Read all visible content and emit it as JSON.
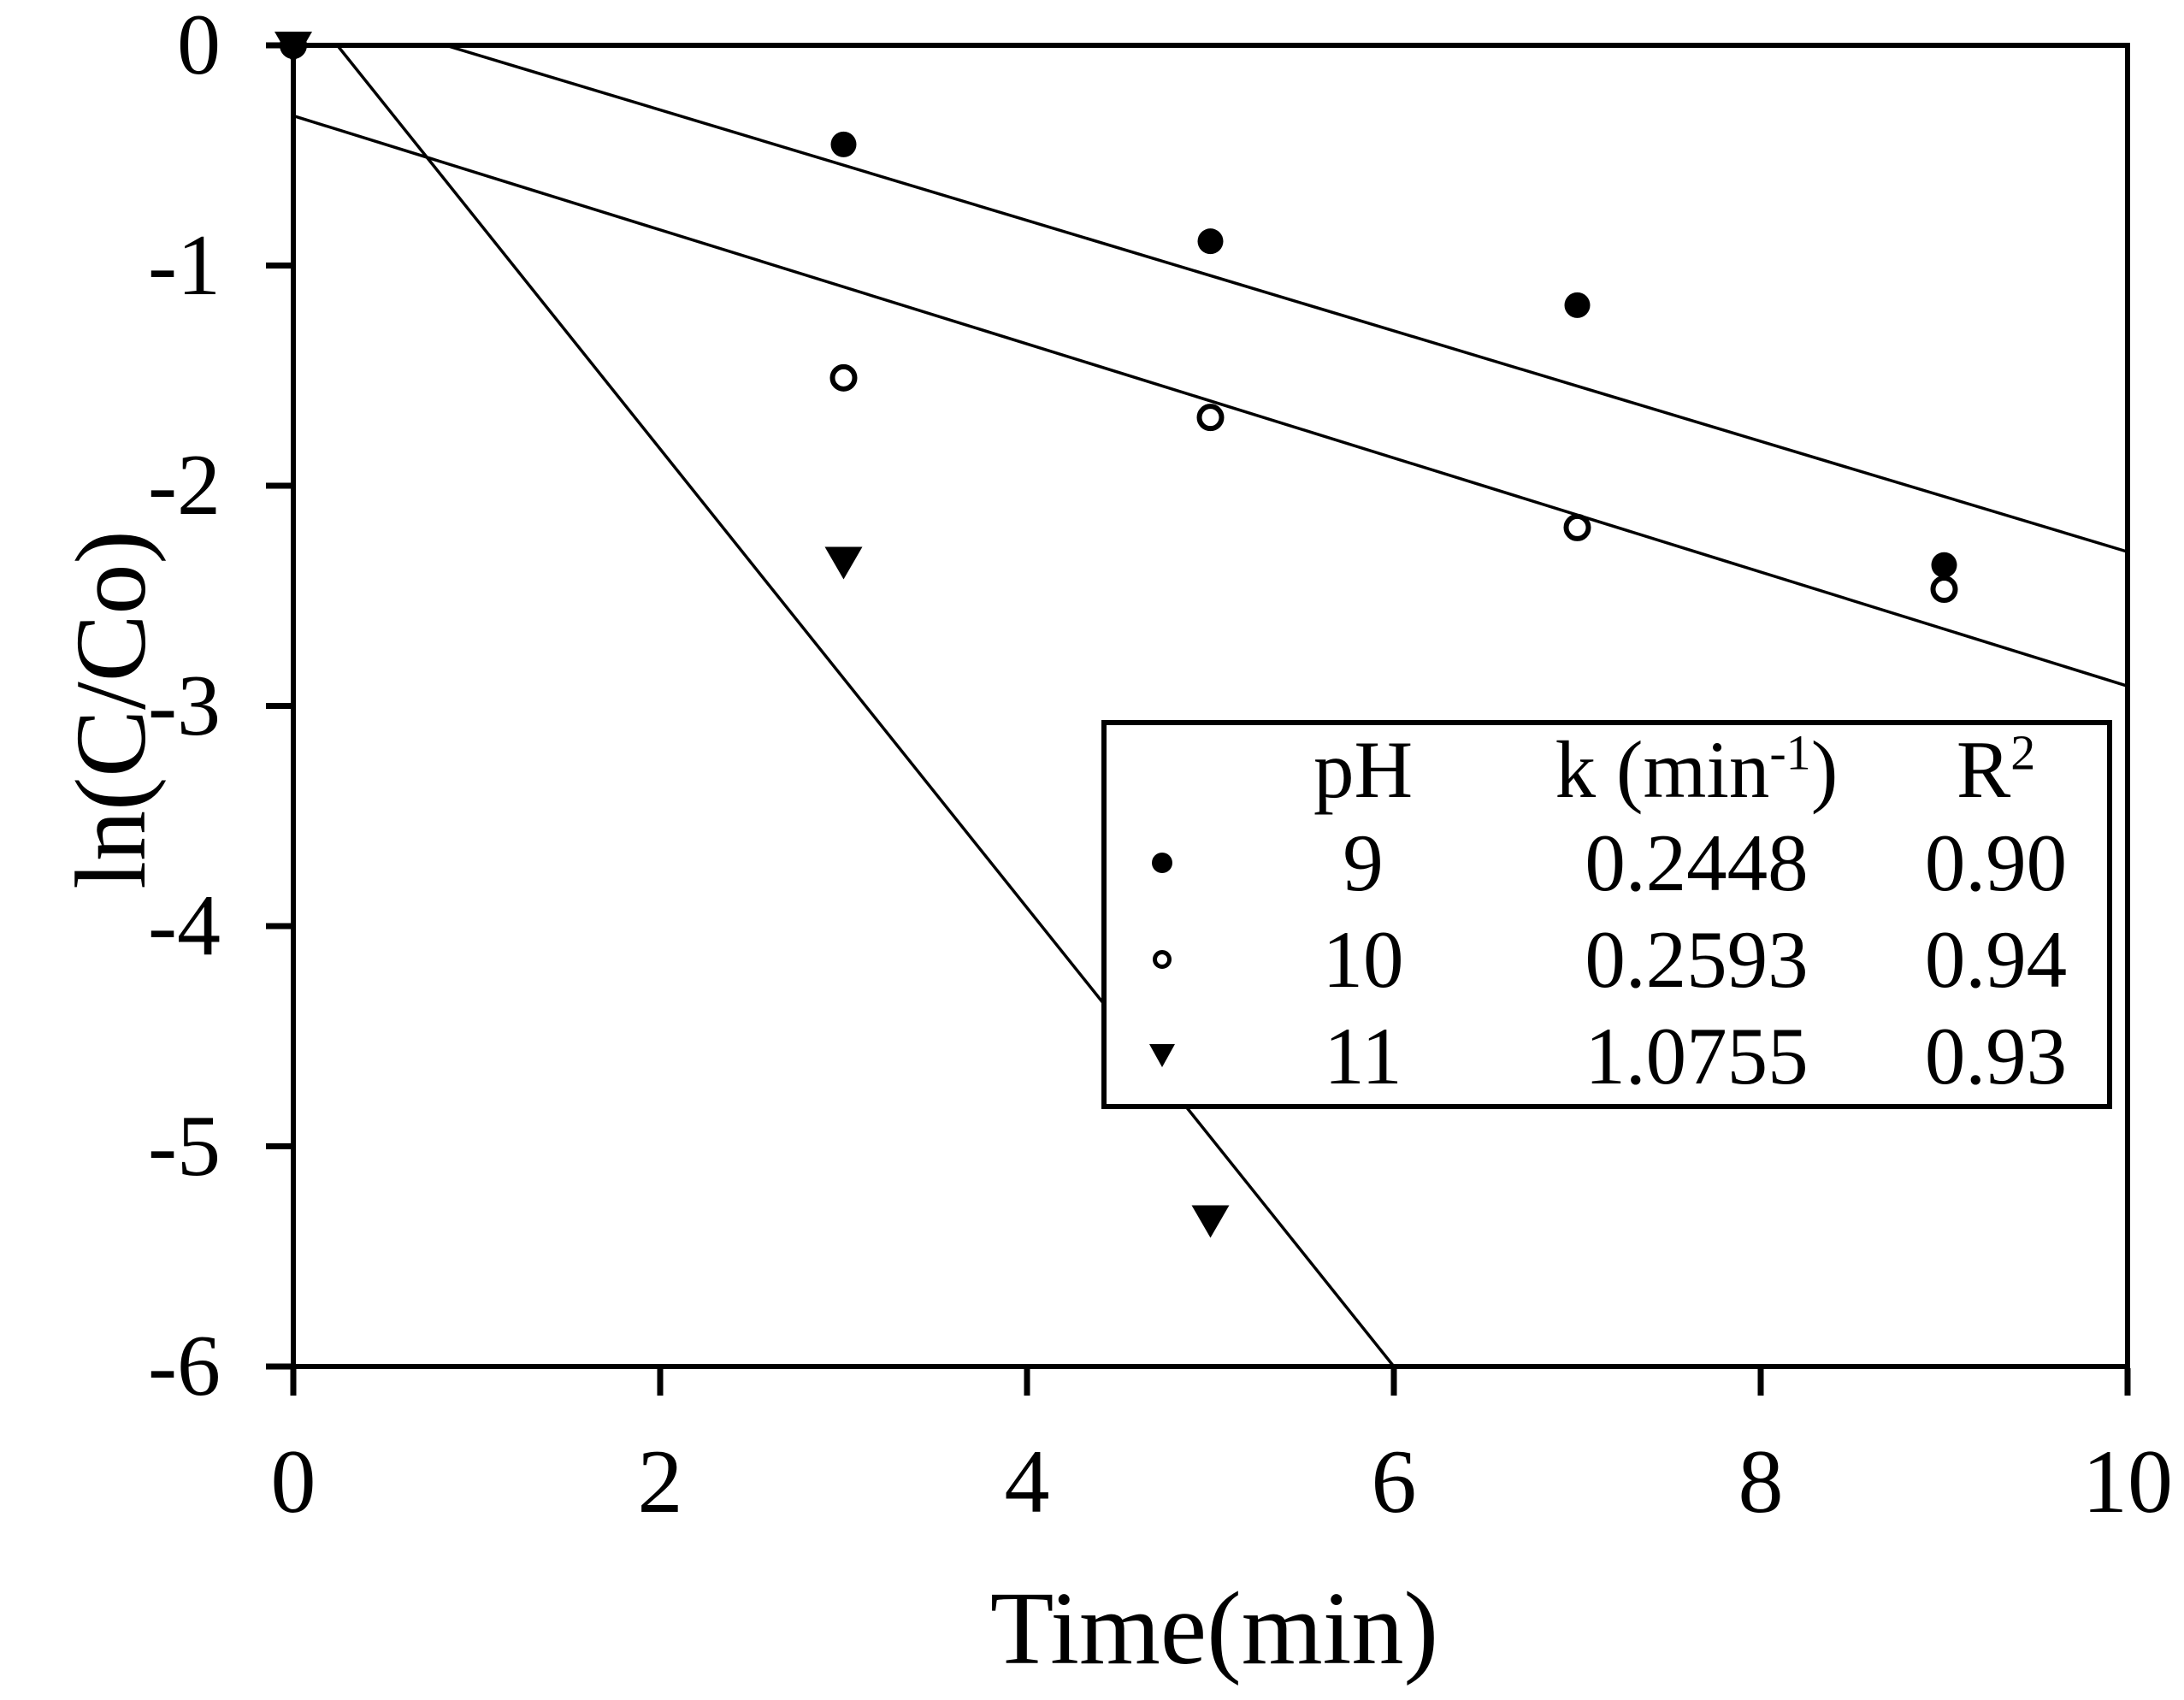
{
  "figure": {
    "background": "#ffffff",
    "ink": "#000000"
  },
  "axes": {
    "x": {
      "label": "Time(min)",
      "ticks": [
        0,
        2,
        4,
        6,
        8,
        10
      ],
      "range": [
        0,
        10
      ]
    },
    "y": {
      "label": "ln(C/Co)",
      "ticks": [
        0,
        -1,
        -2,
        -3,
        -4,
        -5,
        -6
      ],
      "range": [
        -6,
        0
      ]
    }
  },
  "legend": {
    "headers": {
      "ph": "pH",
      "k_pre": "k (min",
      "k_sup": "-1",
      "k_post": ")",
      "r_base": "R",
      "r_sup": "2"
    },
    "rows": [
      {
        "marker": "filled-circle",
        "ph": "9",
        "k": "0.2448",
        "r2": "0.90"
      },
      {
        "marker": "open-circle",
        "ph": "10",
        "k": "0.2593",
        "r2": "0.94"
      },
      {
        "marker": "filled-triangle-down",
        "ph": "11",
        "k": "1.0755",
        "r2": "0.93"
      }
    ]
  },
  "chart_data": {
    "type": "scatter",
    "title": "",
    "xlabel": "Time(min)",
    "ylabel": "ln(C/Co)",
    "xlim": [
      0,
      10
    ],
    "ylim": [
      -6,
      0
    ],
    "grid": false,
    "legend_position": "inside lower-right box",
    "series": [
      {
        "name": "pH 9",
        "marker": "filled-circle",
        "k_min_inv": 0.2448,
        "r_squared": 0.9,
        "points": [
          [
            0,
            0
          ],
          [
            3,
            -0.45
          ],
          [
            5,
            -0.89
          ],
          [
            7,
            -1.18
          ],
          [
            9,
            -2.36
          ]
        ],
        "fit_line": [
          [
            0.83,
            0
          ],
          [
            10,
            -2.3
          ]
        ]
      },
      {
        "name": "pH 10",
        "marker": "open-circle",
        "k_min_inv": 0.2593,
        "r_squared": 0.94,
        "points": [
          [
            0,
            0
          ],
          [
            3,
            -1.51
          ],
          [
            5,
            -1.69
          ],
          [
            7,
            -2.19
          ],
          [
            9,
            -2.47
          ]
        ],
        "fit_line": [
          [
            0,
            -0.32
          ],
          [
            10,
            -2.91
          ]
        ]
      },
      {
        "name": "pH 11",
        "marker": "filled-triangle-down",
        "k_min_inv": 1.0755,
        "r_squared": 0.93,
        "points": [
          [
            0,
            0
          ],
          [
            3,
            -2.34
          ],
          [
            5,
            -5.33
          ]
        ],
        "fit_line": [
          [
            0.24,
            0
          ],
          [
            6.0,
            -6.0
          ]
        ]
      }
    ]
  }
}
